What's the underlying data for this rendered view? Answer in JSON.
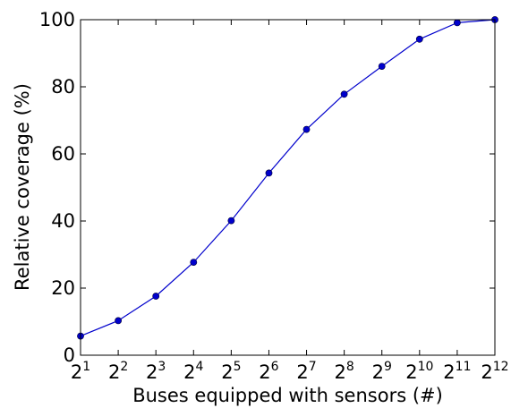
{
  "chart_data": {
    "type": "line",
    "title": "",
    "xlabel": "Buses equipped with sensors (#)",
    "ylabel": "Relative coverage (%)",
    "x_scale": "log2",
    "x_tick_base": "2",
    "x_tick_exponents": [
      "1",
      "2",
      "3",
      "4",
      "5",
      "6",
      "7",
      "8",
      "9",
      "10",
      "11",
      "12"
    ],
    "x": [
      2,
      4,
      8,
      16,
      32,
      64,
      128,
      256,
      512,
      1024,
      2048,
      4096
    ],
    "y_ticks": [
      "0",
      "20",
      "40",
      "60",
      "80",
      "100"
    ],
    "xlim": [
      2,
      4096
    ],
    "ylim": [
      0,
      100
    ],
    "grid": false,
    "series": [
      {
        "values": [
          5.7,
          10.3,
          17.6,
          27.7,
          40.1,
          54.3,
          67.3,
          77.8,
          86.1,
          94.2,
          99.1,
          100.0
        ],
        "color": "#0000cc",
        "marker": "circle"
      }
    ]
  }
}
